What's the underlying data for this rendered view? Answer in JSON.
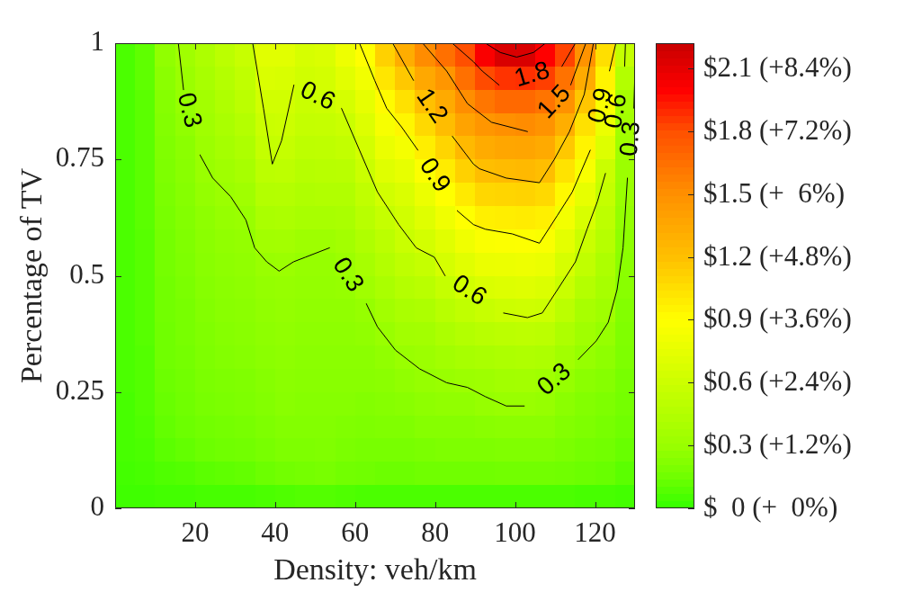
{
  "chart_data": {
    "type": "heatmap",
    "xlabel": "Density: veh/km",
    "ylabel": "Percentage of TV",
    "x": [
      2.5,
      7.5,
      12.5,
      17.5,
      22.5,
      27.5,
      32.5,
      37.5,
      42.5,
      47.5,
      52.5,
      57.5,
      62.5,
      67.5,
      72.5,
      77.5,
      82.5,
      87.5,
      92.5,
      97.5,
      102.5,
      107.5,
      112.5,
      117.5,
      122.5,
      127.5
    ],
    "cells": [
      [
        0.06,
        0.11,
        0.27,
        0.34,
        0.42,
        0.5,
        0.57,
        0.72,
        0.72,
        0.66,
        0.68,
        0.8,
        0.9,
        1.12,
        1.32,
        1.52,
        1.65,
        1.8,
        2.02,
        2.15,
        2.15,
        2.0,
        1.83,
        1.48,
        1.05,
        0.55
      ],
      [
        0.06,
        0.11,
        0.25,
        0.31,
        0.39,
        0.46,
        0.53,
        0.68,
        0.67,
        0.62,
        0.64,
        0.73,
        0.82,
        1.02,
        1.16,
        1.35,
        1.46,
        1.65,
        1.81,
        1.87,
        1.88,
        1.84,
        1.64,
        1.33,
        0.95,
        0.45
      ],
      [
        0.06,
        0.1,
        0.23,
        0.29,
        0.36,
        0.43,
        0.5,
        0.63,
        0.63,
        0.58,
        0.6,
        0.65,
        0.76,
        0.92,
        1.04,
        1.2,
        1.34,
        1.51,
        1.62,
        1.68,
        1.68,
        1.63,
        1.49,
        1.17,
        0.87,
        0.38
      ],
      [
        0.06,
        0.1,
        0.22,
        0.27,
        0.34,
        0.4,
        0.46,
        0.59,
        0.6,
        0.55,
        0.56,
        0.59,
        0.7,
        0.85,
        0.94,
        1.08,
        1.22,
        1.38,
        1.46,
        1.5,
        1.52,
        1.48,
        1.31,
        1.04,
        0.79,
        0.36
      ],
      [
        0.06,
        0.1,
        0.21,
        0.25,
        0.32,
        0.37,
        0.42,
        0.55,
        0.56,
        0.51,
        0.52,
        0.54,
        0.64,
        0.78,
        0.84,
        0.98,
        1.1,
        1.24,
        1.33,
        1.36,
        1.37,
        1.34,
        1.16,
        0.95,
        0.7,
        0.34
      ],
      [
        0.06,
        0.1,
        0.2,
        0.24,
        0.3,
        0.34,
        0.38,
        0.5,
        0.51,
        0.47,
        0.48,
        0.49,
        0.59,
        0.71,
        0.76,
        0.88,
        0.99,
        1.12,
        1.21,
        1.23,
        1.24,
        1.21,
        1.03,
        0.86,
        0.59,
        0.32
      ],
      [
        0.06,
        0.1,
        0.19,
        0.23,
        0.28,
        0.31,
        0.34,
        0.45,
        0.46,
        0.43,
        0.44,
        0.44,
        0.53,
        0.63,
        0.68,
        0.79,
        0.9,
        1.0,
        1.09,
        1.1,
        1.11,
        1.08,
        0.93,
        0.76,
        0.55,
        0.3
      ],
      [
        0.06,
        0.1,
        0.18,
        0.22,
        0.26,
        0.29,
        0.3,
        0.4,
        0.41,
        0.39,
        0.39,
        0.4,
        0.48,
        0.56,
        0.62,
        0.71,
        0.81,
        0.9,
        0.97,
        0.98,
        0.99,
        0.97,
        0.83,
        0.67,
        0.51,
        0.28
      ],
      [
        0.06,
        0.09,
        0.17,
        0.21,
        0.25,
        0.27,
        0.28,
        0.35,
        0.36,
        0.33,
        0.33,
        0.36,
        0.43,
        0.5,
        0.58,
        0.64,
        0.72,
        0.81,
        0.87,
        0.88,
        0.89,
        0.87,
        0.74,
        0.59,
        0.47,
        0.26
      ],
      [
        0.06,
        0.09,
        0.17,
        0.2,
        0.24,
        0.26,
        0.27,
        0.3,
        0.31,
        0.29,
        0.29,
        0.32,
        0.38,
        0.45,
        0.52,
        0.56,
        0.65,
        0.72,
        0.78,
        0.79,
        0.8,
        0.78,
        0.66,
        0.53,
        0.42,
        0.25
      ],
      [
        0.06,
        0.09,
        0.16,
        0.19,
        0.23,
        0.25,
        0.26,
        0.28,
        0.29,
        0.28,
        0.28,
        0.29,
        0.34,
        0.4,
        0.46,
        0.49,
        0.56,
        0.63,
        0.68,
        0.7,
        0.71,
        0.69,
        0.58,
        0.46,
        0.38,
        0.24
      ],
      [
        0.06,
        0.09,
        0.16,
        0.18,
        0.22,
        0.24,
        0.25,
        0.27,
        0.28,
        0.27,
        0.27,
        0.27,
        0.29,
        0.35,
        0.4,
        0.42,
        0.48,
        0.53,
        0.57,
        0.6,
        0.61,
        0.6,
        0.5,
        0.39,
        0.34,
        0.22
      ],
      [
        0.06,
        0.09,
        0.15,
        0.18,
        0.21,
        0.23,
        0.24,
        0.26,
        0.27,
        0.26,
        0.26,
        0.26,
        0.27,
        0.3,
        0.35,
        0.36,
        0.41,
        0.45,
        0.48,
        0.5,
        0.51,
        0.5,
        0.42,
        0.34,
        0.29,
        0.21
      ],
      [
        0.06,
        0.08,
        0.15,
        0.17,
        0.2,
        0.22,
        0.23,
        0.25,
        0.26,
        0.25,
        0.25,
        0.25,
        0.25,
        0.27,
        0.3,
        0.32,
        0.35,
        0.38,
        0.4,
        0.42,
        0.43,
        0.42,
        0.35,
        0.29,
        0.26,
        0.2
      ],
      [
        0.06,
        0.08,
        0.14,
        0.16,
        0.19,
        0.2,
        0.21,
        0.23,
        0.25,
        0.24,
        0.24,
        0.24,
        0.24,
        0.25,
        0.27,
        0.29,
        0.3,
        0.32,
        0.33,
        0.35,
        0.36,
        0.34,
        0.29,
        0.25,
        0.23,
        0.18
      ],
      [
        0.05,
        0.08,
        0.13,
        0.15,
        0.18,
        0.19,
        0.2,
        0.22,
        0.24,
        0.23,
        0.23,
        0.23,
        0.22,
        0.23,
        0.24,
        0.26,
        0.27,
        0.27,
        0.29,
        0.3,
        0.3,
        0.29,
        0.25,
        0.22,
        0.2,
        0.17
      ],
      [
        0.05,
        0.07,
        0.12,
        0.14,
        0.16,
        0.17,
        0.18,
        0.2,
        0.22,
        0.22,
        0.22,
        0.21,
        0.2,
        0.21,
        0.21,
        0.23,
        0.23,
        0.23,
        0.24,
        0.25,
        0.25,
        0.25,
        0.22,
        0.2,
        0.18,
        0.15
      ],
      [
        0.05,
        0.06,
        0.1,
        0.12,
        0.14,
        0.15,
        0.16,
        0.18,
        0.2,
        0.2,
        0.21,
        0.19,
        0.18,
        0.18,
        0.18,
        0.19,
        0.2,
        0.2,
        0.2,
        0.21,
        0.21,
        0.21,
        0.19,
        0.17,
        0.16,
        0.13
      ],
      [
        0.04,
        0.05,
        0.07,
        0.08,
        0.1,
        0.11,
        0.12,
        0.14,
        0.16,
        0.17,
        0.18,
        0.16,
        0.15,
        0.14,
        0.14,
        0.15,
        0.15,
        0.15,
        0.15,
        0.16,
        0.16,
        0.16,
        0.15,
        0.14,
        0.13,
        0.1
      ],
      [
        0.03,
        0.03,
        0.04,
        0.04,
        0.05,
        0.05,
        0.05,
        0.06,
        0.07,
        0.08,
        0.08,
        0.07,
        0.06,
        0.06,
        0.06,
        0.06,
        0.06,
        0.06,
        0.06,
        0.06,
        0.06,
        0.06,
        0.06,
        0.05,
        0.05,
        0.04
      ]
    ],
    "clim": [
      0,
      2.22
    ],
    "cticks": [
      {
        "value": 0,
        "label": "$  0 (+  0%)"
      },
      {
        "value": 0.3,
        "label": "$0.3 (+1.2%)"
      },
      {
        "value": 0.6,
        "label": "$0.6 (+2.4%)"
      },
      {
        "value": 0.9,
        "label": "$0.9 (+3.6%)"
      },
      {
        "value": 1.2,
        "label": "$1.2 (+4.8%)"
      },
      {
        "value": 1.5,
        "label": "$1.5 (+  6%)"
      },
      {
        "value": 1.8,
        "label": "$1.8 (+7.2%)"
      },
      {
        "value": 2.1,
        "label": "$2.1 (+8.4%)"
      }
    ],
    "xlim": [
      0,
      130
    ],
    "xticks": [
      20,
      40,
      60,
      80,
      100,
      120
    ],
    "ylim": [
      0,
      1
    ],
    "yticks": [
      0,
      0.25,
      0.5,
      0.75,
      1
    ],
    "series": [
      {
        "type": "line",
        "name": "0.3",
        "color": "#000000",
        "x": [
          15.8,
          17.1,
          18.4,
          21.2,
          24.4,
          28.9,
          32.7,
          34.9,
          37.9,
          41.0,
          44.6,
          47.6,
          53.6,
          58.1,
          62.8,
          65.6,
          70.1,
          76.1,
          82.9,
          88.1,
          92.6,
          97.8,
          102.3,
          109.9,
          115.8,
          120.3,
          123.3,
          125.5,
          127.0,
          128.1,
          129.0,
          129.7,
          129.9
        ],
        "values": [
          1.0,
          0.9,
          null,
          0.76,
          0.71,
          0.67,
          0.62,
          0.56,
          0.53,
          0.51,
          0.53,
          0.54,
          0.56,
          null,
          0.44,
          0.39,
          0.34,
          0.3,
          0.27,
          0.26,
          0.24,
          0.22,
          0.22,
          null,
          0.32,
          0.36,
          0.4,
          0.47,
          0.56,
          0.71,
          null,
          0.86,
          0.92
        ]
      },
      {
        "type": "line",
        "name": "0.6",
        "color": "#000000",
        "x": [
          34.4,
          37.1,
          39.3,
          41.6,
          44.7,
          50.6,
          56.6,
          61.1,
          65.6,
          70.9,
          75.3,
          79.8,
          82.5,
          88.5,
          97.1,
          103.1,
          106.8,
          110.6,
          115.1,
          118.0,
          120.6,
          122.6,
          125.4,
          127.4,
          127.6
        ],
        "values": [
          1.0,
          0.86,
          0.74,
          0.79,
          0.91,
          null,
          0.86,
          0.77,
          0.68,
          0.61,
          0.56,
          0.54,
          0.5,
          null,
          0.42,
          0.41,
          0.42,
          0.47,
          0.53,
          0.6,
          0.66,
          0.72,
          null,
          0.95,
          1.0
        ]
      },
      {
        "type": "line",
        "name": "0.9",
        "color": "#000000",
        "x": [
          61.1,
          64.9,
          67.9,
          71.6,
          75.7,
          79.8,
          85.5,
          89.6,
          92.6,
          99.3,
          106.1,
          110.6,
          114.3,
          118.8,
          121.5,
          123.6,
          125.2
        ],
        "values": [
          1.0,
          0.92,
          0.86,
          0.82,
          0.77,
          null,
          0.64,
          0.61,
          0.6,
          0.59,
          0.57,
          0.63,
          0.68,
          0.77,
          null,
          0.94,
          1.0
        ]
      },
      {
        "type": "line",
        "name": "1.2",
        "color": "#000000",
        "x": [
          69.4,
          74.6,
          79.1,
          84.3,
          89.6,
          91.1,
          97.8,
          106.1,
          109.8,
          113.6,
          117.3,
          119.6
        ],
        "values": [
          1.0,
          0.92,
          null,
          0.8,
          0.74,
          0.73,
          0.71,
          0.7,
          0.75,
          0.81,
          0.89,
          1.0
        ]
      },
      {
        "type": "line",
        "name": "1.5",
        "color": "#000000",
        "x": [
          76.9,
          82.9,
          88.1,
          94.1,
          103.1,
          109.9,
          113.9,
          117.7
        ],
        "values": [
          1.0,
          0.94,
          0.87,
          0.83,
          0.81,
          null,
          0.91,
          1.0
        ]
      },
      {
        "type": "line",
        "name": "1.8",
        "color": "#000000",
        "x": [
          84.3,
          89.6,
          91.8,
          96.0,
          104.3,
          111.7,
          115.1
        ],
        "values": [
          1.0,
          0.96,
          0.94,
          0.91,
          null,
          0.95,
          1.0
        ]
      },
      {
        "type": "line",
        "color": "#000000",
        "x": [
          92.6,
          96.3,
          100.4,
          104.6,
          107.6
        ],
        "values": [
          1.0,
          0.98,
          0.97,
          0.98,
          1.0
        ]
      }
    ]
  }
}
